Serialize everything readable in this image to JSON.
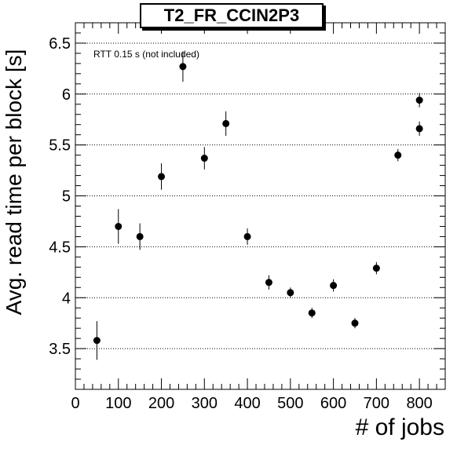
{
  "title": "T2_FR_CCIN2P3",
  "annotation": "RTT 0.15 s (not included)",
  "chart_data": {
    "type": "scatter",
    "title": "T2_FR_CCIN2P3",
    "xlabel": "# of jobs",
    "ylabel": "Avg. read time per block [s]",
    "xlim": [
      0,
      860
    ],
    "ylim": [
      3.1,
      6.7
    ],
    "grid": "horizontal dotted",
    "xticks": [
      0,
      100,
      200,
      300,
      400,
      500,
      600,
      700,
      800
    ],
    "yticks": [
      3.5,
      4,
      4.5,
      5,
      5.5,
      6,
      6.5
    ],
    "xtick_labels": [
      "0",
      "100",
      "200",
      "300",
      "400",
      "500",
      "600",
      "700",
      "800"
    ],
    "ytick_labels": [
      "3.5",
      "4",
      "4.5",
      "5",
      "5.5",
      "6",
      "6.5"
    ],
    "points": [
      {
        "x": 50,
        "y": 3.58,
        "err": 0.19
      },
      {
        "x": 100,
        "y": 4.7,
        "err": 0.17
      },
      {
        "x": 150,
        "y": 4.6,
        "err": 0.13
      },
      {
        "x": 200,
        "y": 5.19,
        "err": 0.13
      },
      {
        "x": 250,
        "y": 6.27,
        "err": 0.15
      },
      {
        "x": 300,
        "y": 5.37,
        "err": 0.11
      },
      {
        "x": 350,
        "y": 5.71,
        "err": 0.12
      },
      {
        "x": 400,
        "y": 4.6,
        "err": 0.08
      },
      {
        "x": 450,
        "y": 4.15,
        "err": 0.07
      },
      {
        "x": 500,
        "y": 4.05,
        "err": 0.05
      },
      {
        "x": 550,
        "y": 3.85,
        "err": 0.05
      },
      {
        "x": 600,
        "y": 4.12,
        "err": 0.06
      },
      {
        "x": 650,
        "y": 3.75,
        "err": 0.05
      },
      {
        "x": 700,
        "y": 4.29,
        "err": 0.06
      },
      {
        "x": 750,
        "y": 5.4,
        "err": 0.06
      },
      {
        "x": 800,
        "y": 5.66,
        "err": 0.07
      },
      {
        "x": 800,
        "y": 5.94,
        "err": 0.07
      }
    ]
  }
}
